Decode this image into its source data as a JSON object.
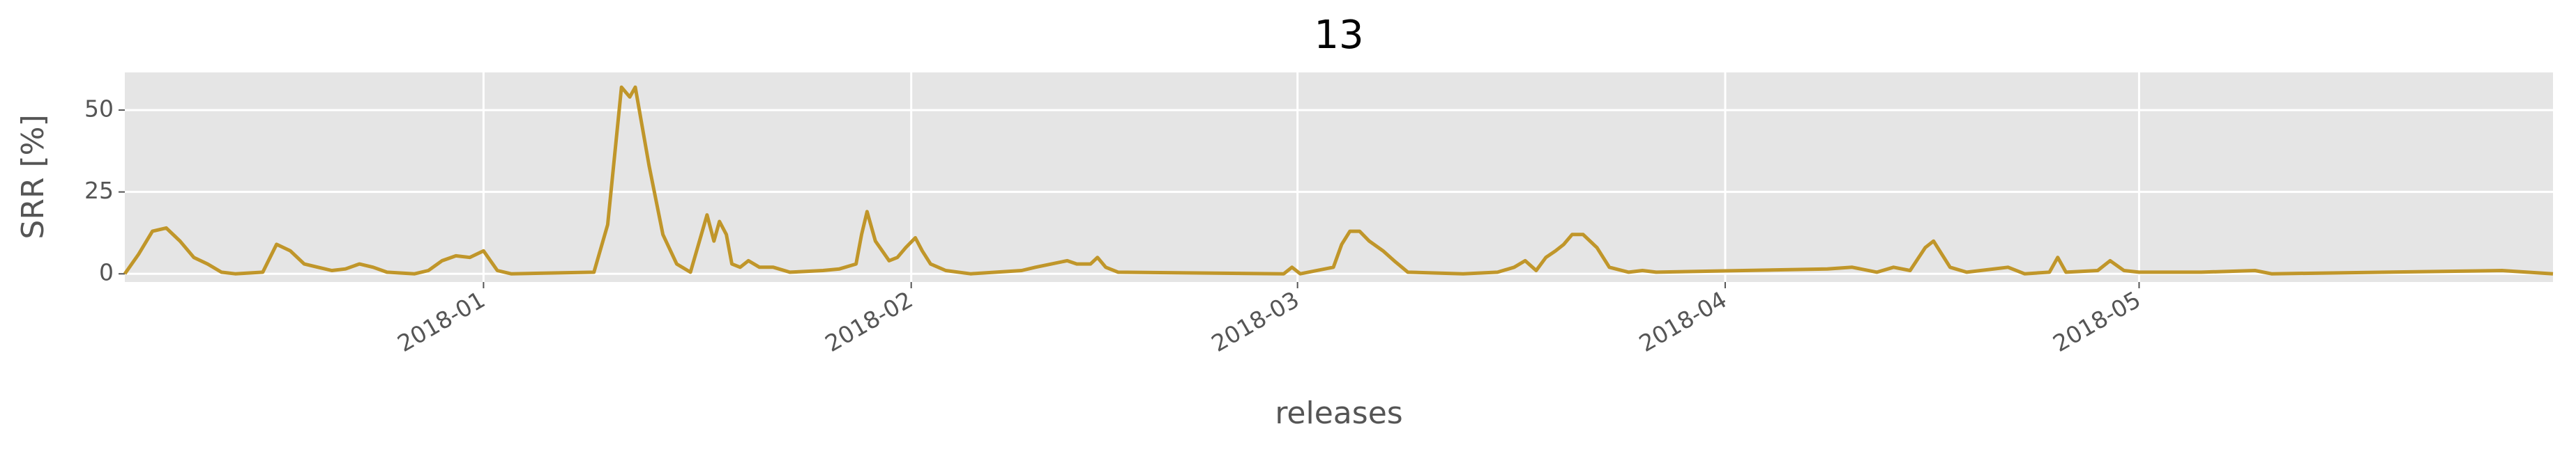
{
  "chart_data": {
    "type": "line",
    "title": "13",
    "xlabel": "releases",
    "ylabel": "SRR [%]",
    "x": [
      0,
      1,
      2,
      3,
      4,
      5,
      6,
      7,
      8,
      10,
      11,
      12,
      13,
      14,
      15,
      16,
      17,
      18,
      19,
      21,
      22,
      23,
      24,
      25,
      26,
      27,
      28,
      34,
      35,
      36,
      36.6,
      37,
      38,
      39,
      40,
      41,
      42.2,
      42.7,
      43.1,
      43.6,
      44,
      44.6,
      45.2,
      46,
      47,
      48.2,
      50.6,
      51.8,
      53,
      53.4,
      53.8,
      54.4,
      55.4,
      56,
      56.6,
      57.3,
      57.8,
      58.4,
      59.5,
      61.3,
      65,
      66,
      68.3,
      69,
      70,
      70.5,
      71.1,
      72,
      84,
      84.6,
      85.2,
      87.6,
      88.2,
      88.8,
      89.5,
      90.2,
      91.2,
      92,
      93,
      97,
      99.5,
      100.7,
      101.5,
      102.3,
      103,
      103.7,
      104.3,
      104.9,
      105.7,
      106.7,
      107.6,
      109,
      110,
      111,
      123.4,
      125.2,
      127,
      128.2,
      129.4,
      130.5,
      131.1,
      132.3,
      133.5,
      136.5,
      137.7,
      139.5,
      140.1,
      140.7,
      143,
      143.9,
      144.9,
      146,
      150.5,
      154.4,
      155.6,
      172.3,
      176
    ],
    "series": [
      {
        "color": "#c0962a",
        "values": [
          0,
          6,
          13,
          14,
          10,
          5,
          3,
          0.5,
          0,
          0.5,
          9,
          7,
          3,
          2,
          1,
          1.5,
          3,
          2,
          0.5,
          0,
          1,
          4,
          5.5,
          5,
          7,
          1,
          0,
          0.5,
          15,
          57,
          54,
          57,
          33,
          12,
          3,
          0.5,
          18,
          10,
          16,
          12,
          3,
          2,
          4,
          2,
          2,
          0.5,
          1,
          1.5,
          3,
          12,
          19,
          10,
          4,
          5,
          8,
          11,
          7,
          3,
          1,
          0,
          1,
          2,
          4,
          3,
          3,
          5,
          2,
          0.5,
          0,
          2,
          0,
          2,
          9,
          13,
          13,
          10,
          7,
          4,
          0.5,
          0,
          0.5,
          2,
          4,
          1,
          5,
          7,
          9,
          12,
          12,
          8,
          2,
          0.5,
          1,
          0.5,
          1.5,
          2,
          0.5,
          2,
          1,
          8,
          10,
          2,
          0.5,
          2,
          0,
          0.5,
          5,
          0.5,
          1,
          4,
          1,
          0.5,
          0.5,
          1,
          0,
          1,
          0
        ]
      }
    ],
    "xlim": [
      0,
      176
    ],
    "xticks": [
      {
        "value": 26,
        "label": "2018-01"
      },
      {
        "value": 57,
        "label": "2018-02"
      },
      {
        "value": 85,
        "label": "2018-03"
      },
      {
        "value": 116,
        "label": "2018-04"
      },
      {
        "value": 146,
        "label": "2018-05"
      }
    ],
    "ylim": [
      -2.5,
      61.5
    ],
    "yticks": [
      0,
      25,
      50
    ],
    "grid": true
  }
}
